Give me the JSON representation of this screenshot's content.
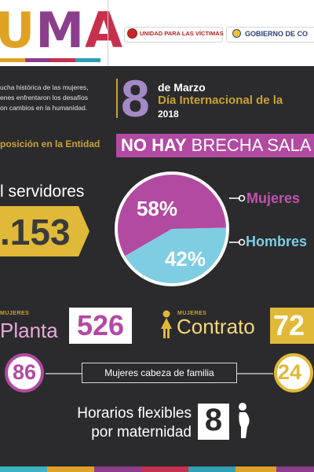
{
  "header": {
    "logo_letters": [
      "U",
      "M",
      "A"
    ],
    "partner_logo_1": "UNIDAD PARA LAS VÍCTIMAS",
    "partner_logo_2": "GOBIERNO DE CO"
  },
  "intro": {
    "lines": [
      "ucha histórica de las mujeres,",
      "enes enfrentaron los desafíos",
      "on cambios en la humanidad."
    ]
  },
  "date": {
    "day": "8",
    "month": "de Marzo",
    "event": "Día Internacional de la",
    "year": "2018"
  },
  "composition": {
    "label": "posición en la Entidad",
    "brecha_bold": "NO HAY",
    "brecha_rest": " BRECHA SALA"
  },
  "servidores": {
    "label": "l servidores",
    "total": ".153"
  },
  "chart_data": {
    "type": "pie",
    "slices": [
      {
        "name": "Mujeres",
        "label": "58%",
        "value": 58,
        "color": "#b24aa2"
      },
      {
        "name": "Hombres",
        "label": "42%",
        "value": 42,
        "color": "#7ecde3"
      }
    ]
  },
  "planta": {
    "tag": "MUJERES",
    "label": "Planta",
    "value": "526"
  },
  "contrato": {
    "tag": "MUJERES",
    "label": "Contrato",
    "value": "72"
  },
  "cabeza": {
    "left_value": "86",
    "label": "Mujeres cabeza de familia",
    "right_value": "24"
  },
  "horarios": {
    "line1": "Horarios flexibles",
    "line2": "por maternidad",
    "value": "8"
  },
  "colors": {
    "magenta": "#b24aa2",
    "gold": "#c9a230",
    "light_blue": "#7ecde3",
    "lavender": "#a38ac6",
    "background": "#2b2b2d"
  }
}
